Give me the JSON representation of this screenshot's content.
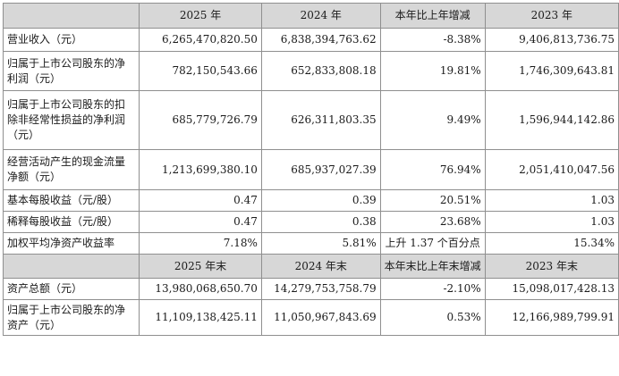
{
  "table": {
    "header1": [
      "",
      "2025 年",
      "2024 年",
      "本年比上年增减",
      "2023 年"
    ],
    "rows1": [
      {
        "label": "营业收入（元）",
        "v2025": "6,265,470,820.50",
        "v2024": "6,838,394,763.62",
        "change": "-8.38%",
        "v2023": "9,406,813,736.75"
      },
      {
        "label": "归属于上市公司股东的净利润（元）",
        "v2025": "782,150,543.66",
        "v2024": "652,833,808.18",
        "change": "19.81%",
        "v2023": "1,746,309,643.81"
      },
      {
        "label": "归属于上市公司股东的扣除非经常性损益的净利润（元）",
        "v2025": "685,779,726.79",
        "v2024": "626,311,803.35",
        "change": "9.49%",
        "v2023": "1,596,944,142.86"
      },
      {
        "label": "经营活动产生的现金流量净额（元）",
        "v2025": "1,213,699,380.10",
        "v2024": "685,937,027.39",
        "change": "76.94%",
        "v2023": "2,051,410,047.56"
      },
      {
        "label": "基本每股收益（元/股）",
        "v2025": "0.47",
        "v2024": "0.39",
        "change": "20.51%",
        "v2023": "1.03"
      },
      {
        "label": "稀释每股收益（元/股）",
        "v2025": "0.47",
        "v2024": "0.38",
        "change": "23.68%",
        "v2023": "1.03"
      },
      {
        "label": "加权平均净资产收益率",
        "v2025": "7.18%",
        "v2024": "5.81%",
        "change": "上升 1.37 个百分点",
        "v2023": "15.34%"
      }
    ],
    "header2": [
      "",
      "2025 年末",
      "2024 年末",
      "本年末比上年末增减",
      "2023 年末"
    ],
    "rows2": [
      {
        "label": "资产总额（元）",
        "v2025": "13,980,068,650.70",
        "v2024": "14,279,753,758.79",
        "change": "-2.10%",
        "v2023": "15,098,017,428.13"
      },
      {
        "label": "归属于上市公司股东的净资产（元）",
        "v2025": "11,109,138,425.11",
        "v2024": "11,050,967,843.69",
        "change": "0.53%",
        "v2023": "12,166,989,799.91"
      }
    ]
  }
}
